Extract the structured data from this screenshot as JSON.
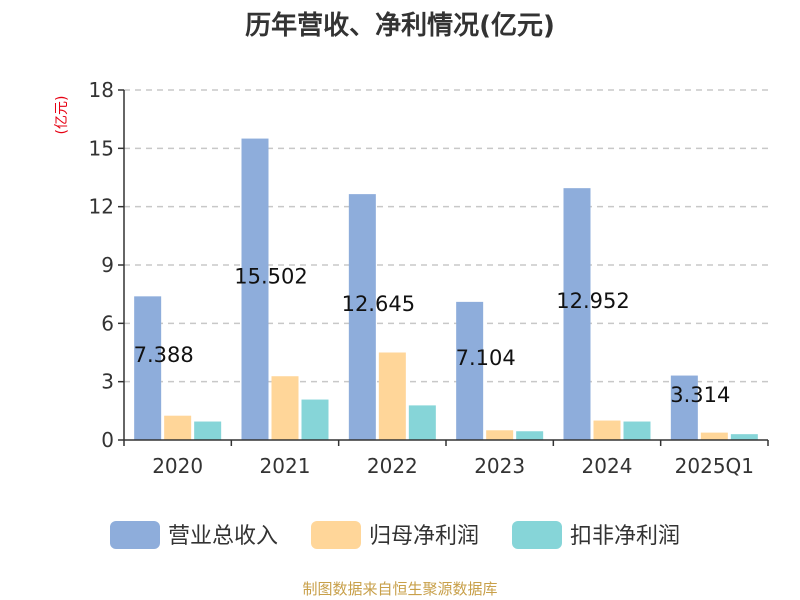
{
  "chart_data": {
    "type": "bar",
    "title": "历年营收、净利情况(亿元)",
    "ylabel": "(亿元)",
    "ylim": [
      0,
      18
    ],
    "yticks": [
      0,
      3,
      6,
      9,
      12,
      15,
      18
    ],
    "grid": true,
    "legend_position": "bottom",
    "categories": [
      "2020",
      "2021",
      "2022",
      "2023",
      "2024",
      "2025Q1"
    ],
    "series": [
      {
        "name": "营业总收入",
        "color": "#8EADDB",
        "values": [
          7.388,
          15.502,
          12.645,
          7.104,
          12.952,
          3.314
        ]
      },
      {
        "name": "归母净利润",
        "color": "#FFD699",
        "values": [
          1.25,
          3.28,
          4.5,
          0.5,
          1.0,
          0.38
        ]
      },
      {
        "name": "扣非净利润",
        "color": "#86D5D8",
        "values": [
          0.95,
          2.08,
          1.78,
          0.45,
          0.95,
          0.3
        ]
      }
    ],
    "data_labels": [
      "7.388",
      "15.502",
      "12.645",
      "7.104",
      "12.952",
      "3.314"
    ]
  },
  "source": "制图数据来自恒生聚源数据库",
  "colors": {
    "title": "#333333",
    "ylabel": "#E60012",
    "source": "#C8A04A",
    "axis": "#333333",
    "grid": "#C8C8C8"
  }
}
